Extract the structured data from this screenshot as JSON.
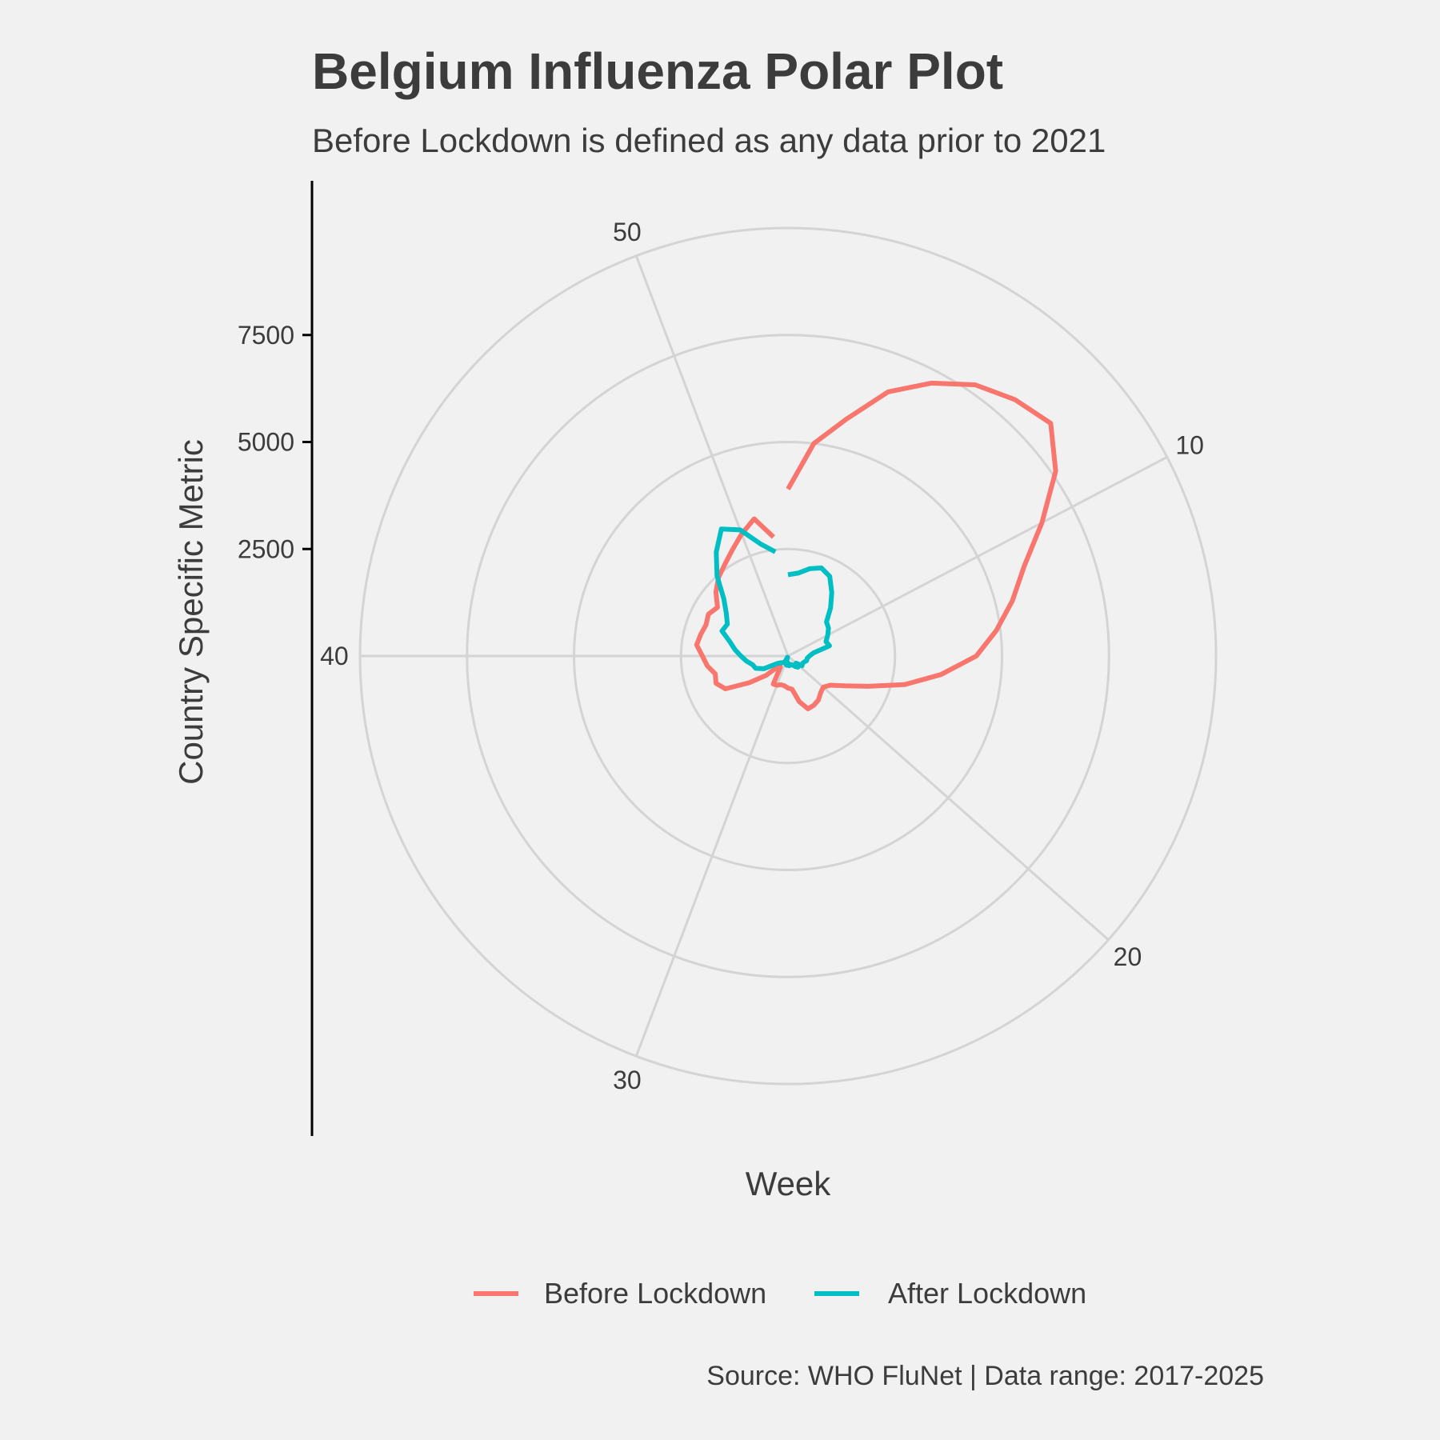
{
  "chart_data": {
    "type": "line",
    "coord": "polar",
    "title": "Belgium Influenza Polar Plot",
    "subtitle": "Before Lockdown is defined as any data prior to 2021",
    "xlabel": "Week",
    "ylabel": "Country Specific Metric",
    "caption": "Source: WHO FluNet | Data range: 2017-2025",
    "x_ticks": [
      10,
      20,
      30,
      40,
      50
    ],
    "y_ticks": [
      2500,
      5000,
      7500
    ],
    "x_range": [
      1,
      52
    ],
    "y_range": [
      0,
      10000
    ],
    "grid": true,
    "legend_position": "bottom",
    "x": [
      1,
      2,
      3,
      4,
      5,
      6,
      7,
      8,
      9,
      10,
      11,
      12,
      13,
      14,
      15,
      16,
      17,
      18,
      19,
      20,
      21,
      22,
      23,
      24,
      25,
      26,
      27,
      28,
      29,
      30,
      31,
      32,
      33,
      34,
      35,
      36,
      37,
      38,
      39,
      40,
      41,
      42,
      43,
      44,
      45,
      46,
      47,
      48,
      49,
      50,
      51,
      52
    ],
    "series": [
      {
        "name": "Before Lockdown",
        "color": "#F8766D",
        "values": [
          3900,
          5000,
          5700,
          6600,
          7200,
          7700,
          8000,
          8200,
          7600,
          6700,
          5900,
          5400,
          4900,
          4400,
          3600,
          2800,
          2000,
          1500,
          1200,
          1100,
          1150,
          1250,
          1300,
          1320,
          1100,
          780,
          750,
          700,
          690,
          730,
          740,
          320,
          280,
          680,
          1100,
          1650,
          1800,
          1750,
          1900,
          2000,
          2150,
          2100,
          2050,
          2100,
          2000,
          2250,
          2450,
          2600,
          2800,
          3050,
          3300,
          2800
        ]
      },
      {
        "name": "After Lockdown",
        "color": "#00BFC4",
        "values": [
          1900,
          1950,
          2100,
          2200,
          2100,
          1800,
          1500,
          1200,
          1150,
          1050,
          950,
          1000,
          600,
          500,
          450,
          450,
          400,
          380,
          400,
          250,
          350,
          300,
          240,
          210,
          220,
          230,
          160,
          220,
          200,
          30,
          140,
          180,
          210,
          240,
          310,
          640,
          810,
          850,
          980,
          1100,
          1250,
          1400,
          1650,
          1600,
          1750,
          2000,
          2500,
          2950,
          3350,
          3150,
          2700,
          2450
        ]
      }
    ]
  },
  "legend": {
    "items": [
      {
        "label": "Before Lockdown",
        "color": "#F8766D"
      },
      {
        "label": "After Lockdown",
        "color": "#00BFC4"
      }
    ]
  }
}
